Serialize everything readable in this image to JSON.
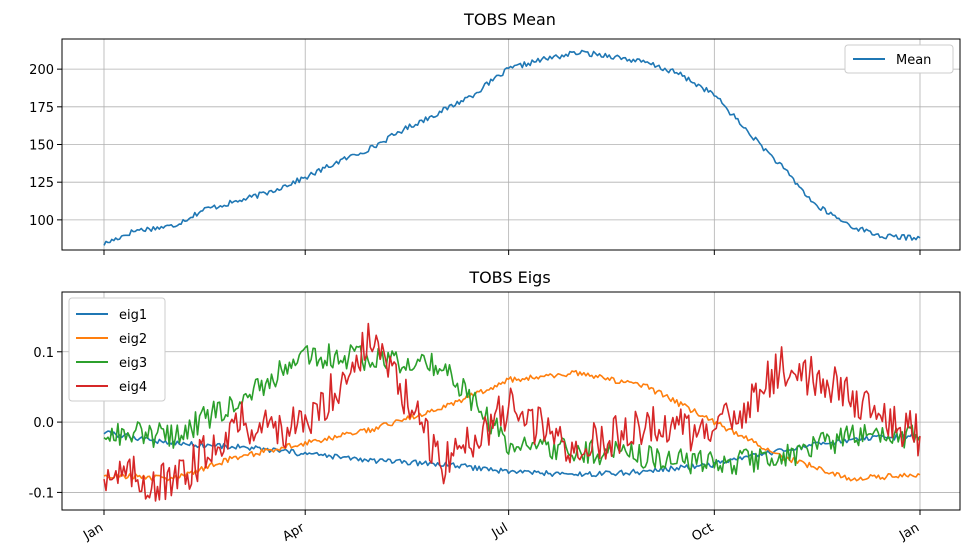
{
  "chart_data": [
    {
      "type": "line",
      "title": "TOBS Mean",
      "xlabel": "",
      "ylabel": "",
      "x_ticks": [
        "Jan",
        "Apr",
        "Jul",
        "Oct",
        "Jan"
      ],
      "y_ticks": [
        "100",
        "125",
        "150",
        "175",
        "200"
      ],
      "ylim": [
        80,
        220
      ],
      "grid": true,
      "legend_position": "top-right",
      "series": [
        {
          "name": "Mean",
          "color": "#1f77b4",
          "x": [
            "2019-01-01",
            "2019-01-15",
            "2019-02-01",
            "2019-02-15",
            "2019-03-01",
            "2019-03-15",
            "2019-04-01",
            "2019-04-15",
            "2019-05-01",
            "2019-05-15",
            "2019-06-01",
            "2019-06-15",
            "2019-07-01",
            "2019-07-15",
            "2019-08-01",
            "2019-08-15",
            "2019-09-01",
            "2019-09-15",
            "2019-10-01",
            "2019-10-15",
            "2019-11-01",
            "2019-11-15",
            "2019-12-01",
            "2019-12-15",
            "2020-01-01"
          ],
          "y": [
            84,
            93,
            96,
            107,
            112,
            118,
            128,
            138,
            148,
            160,
            172,
            183,
            200,
            206,
            211,
            209,
            204,
            197,
            183,
            160,
            134,
            110,
            96,
            89,
            88
          ]
        }
      ]
    },
    {
      "type": "line",
      "title": "TOBS Eigs",
      "xlabel": "",
      "ylabel": "",
      "x_ticks": [
        "Jan",
        "Apr",
        "Jul",
        "Oct",
        "Jan"
      ],
      "y_ticks": [
        "-0.1",
        "0.0",
        "0.1"
      ],
      "ylim": [
        -0.125,
        0.185
      ],
      "grid": true,
      "legend_position": "top-left",
      "series": [
        {
          "name": "eig1",
          "color": "#1f77b4",
          "x": [
            "2019-01-01",
            "2019-02-01",
            "2019-03-01",
            "2019-04-01",
            "2019-05-01",
            "2019-06-01",
            "2019-07-01",
            "2019-08-01",
            "2019-09-01",
            "2019-10-01",
            "2019-11-01",
            "2019-12-01",
            "2020-01-01"
          ],
          "y": [
            -0.015,
            -0.03,
            -0.035,
            -0.045,
            -0.055,
            -0.06,
            -0.07,
            -0.075,
            -0.07,
            -0.06,
            -0.04,
            -0.025,
            -0.02
          ]
        },
        {
          "name": "eig2",
          "color": "#ff7f0e",
          "x": [
            "2019-01-01",
            "2019-02-01",
            "2019-03-01",
            "2019-04-01",
            "2019-05-01",
            "2019-06-01",
            "2019-07-01",
            "2019-08-01",
            "2019-09-01",
            "2019-10-01",
            "2019-11-01",
            "2019-12-01",
            "2020-01-01"
          ],
          "y": [
            -0.075,
            -0.08,
            -0.05,
            -0.03,
            -0.01,
            0.02,
            0.06,
            0.07,
            0.05,
            0.0,
            -0.05,
            -0.08,
            -0.075
          ]
        },
        {
          "name": "eig3",
          "color": "#2ca02c",
          "x": [
            "2019-01-01",
            "2019-02-01",
            "2019-03-01",
            "2019-04-01",
            "2019-05-01",
            "2019-06-01",
            "2019-07-01",
            "2019-08-01",
            "2019-09-01",
            "2019-10-01",
            "2019-11-01",
            "2019-12-01",
            "2020-01-01"
          ],
          "y": [
            -0.015,
            -0.02,
            0.03,
            0.095,
            0.09,
            0.08,
            -0.03,
            -0.04,
            -0.05,
            -0.06,
            -0.05,
            -0.02,
            -0.02
          ]
        },
        {
          "name": "eig4",
          "color": "#d62728",
          "x": [
            "2019-01-01",
            "2019-02-01",
            "2019-03-01",
            "2019-04-01",
            "2019-05-01",
            "2019-06-01",
            "2019-07-01",
            "2019-08-01",
            "2019-09-01",
            "2019-10-01",
            "2019-11-01",
            "2019-12-01",
            "2020-01-01"
          ],
          "y": [
            -0.07,
            -0.09,
            0.0,
            -0.01,
            0.12,
            -0.06,
            0.02,
            -0.04,
            0.0,
            -0.02,
            0.08,
            0.04,
            -0.02
          ]
        }
      ]
    }
  ]
}
